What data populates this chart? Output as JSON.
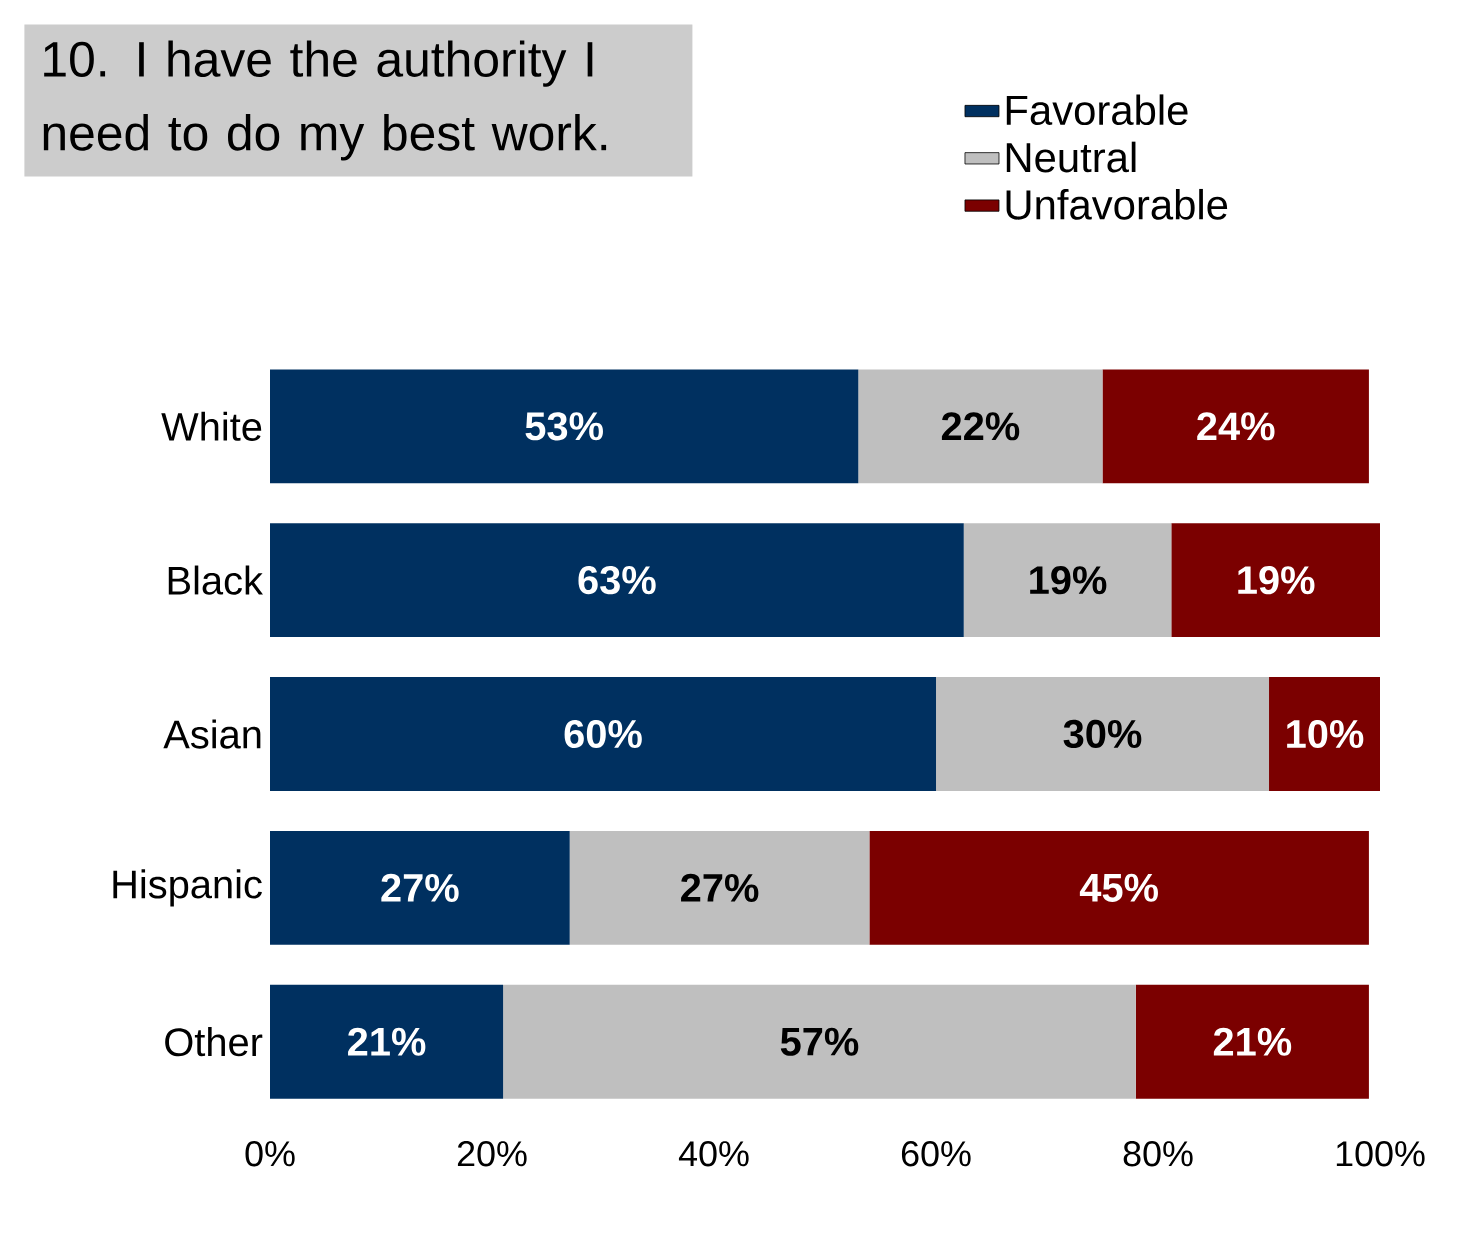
{
  "chart_data": {
    "type": "bar",
    "orientation": "horizontal",
    "stacked": true,
    "title": "10. I have the authority I need to do my best work.",
    "categories": [
      "White",
      "Black",
      "Asian",
      "Hispanic",
      "Other"
    ],
    "series": [
      {
        "name": "Favorable",
        "color": "#003060",
        "values": [
          53,
          62.5,
          60,
          27,
          21
        ],
        "value_labels": [
          "53%",
          "63%",
          "60%",
          "27%",
          "21%"
        ]
      },
      {
        "name": "Neutral",
        "color": "#bfbfbf",
        "values": [
          22,
          18.7,
          30,
          27,
          57
        ],
        "value_labels": [
          "22%",
          "19%",
          "30%",
          "27%",
          "57%"
        ]
      },
      {
        "name": "Unfavorable",
        "color": "#7b0000",
        "values": [
          24,
          18.8,
          10,
          45,
          21
        ],
        "value_labels": [
          "24%",
          "19%",
          "10%",
          "45%",
          "21%"
        ]
      }
    ],
    "xlim": [
      0,
      100
    ],
    "xticks": [
      {
        "value": 0,
        "label": "0%"
      },
      {
        "value": 20,
        "label": "20%"
      },
      {
        "value": 40,
        "label": "40%"
      },
      {
        "value": 60,
        "label": "60%"
      },
      {
        "value": 80,
        "label": "80%"
      },
      {
        "value": 100,
        "label": "100%"
      }
    ],
    "legend": "top right",
    "grid": false
  }
}
